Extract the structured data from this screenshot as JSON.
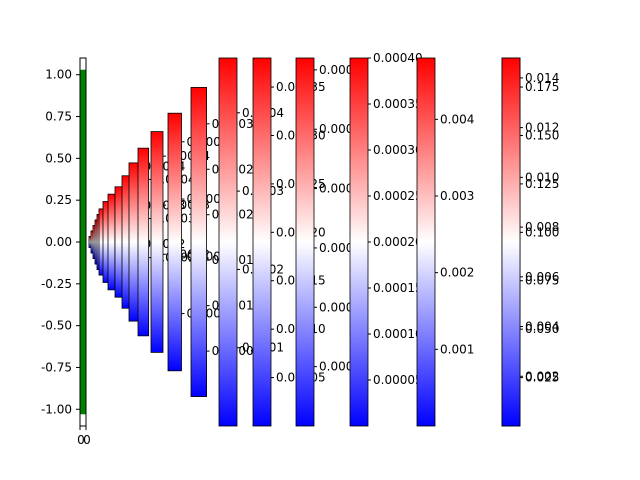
{
  "chart_data": {
    "type": "heatmap",
    "description_colormap": "bwr",
    "colors": {
      "main_bar": "#008000",
      "low": "#0000ff",
      "mid": "#ffffff",
      "high": "#ff0000"
    },
    "main_axis": {
      "ylim": [
        -1.1,
        1.1
      ],
      "yticks": [
        "1.00",
        "0.75",
        "0.50",
        "0.25",
        "0.00",
        "-0.25",
        "-0.50",
        "-0.75",
        "-1.00"
      ],
      "ytick_values": [
        1.0,
        0.75,
        0.5,
        0.25,
        0.0,
        -0.25,
        -0.5,
        -0.75,
        -1.0
      ],
      "xticks": [
        "0",
        "0"
      ],
      "bar_y_range": [
        -1.03,
        1.03
      ]
    },
    "colorbars": [
      {
        "range": [
          -0.0,
          0.00017
        ],
        "ticks": [],
        "tick_labels": [],
        "fraction": 0.03
      },
      {
        "range": [
          0.0,
          0.0003
        ],
        "ticks": [],
        "tick_labels": [],
        "fraction": 0.06
      },
      {
        "range": [
          0.0,
          0.0003
        ],
        "ticks": [],
        "tick_labels": [],
        "fraction": 0.09
      },
      {
        "range": [
          0.0,
          0.0003
        ],
        "ticks": [],
        "tick_labels": [],
        "fraction": 0.12
      },
      {
        "range": [
          0.0,
          0.0003
        ],
        "ticks": [],
        "tick_labels": [],
        "fraction": 0.15
      },
      {
        "range": [
          0.0,
          0.0003
        ],
        "ticks": [],
        "tick_labels": [],
        "fraction": 0.18
      },
      {
        "range": [
          0.0,
          0.0003
        ],
        "ticks": [],
        "tick_labels": [],
        "fraction": 0.22
      },
      {
        "range": [
          0.0,
          0.0003
        ],
        "ticks": [],
        "tick_labels": [],
        "fraction": 0.26
      },
      {
        "range": [
          0.0,
          0.0003
        ],
        "ticks": [],
        "tick_labels": [],
        "fraction": 0.3
      },
      {
        "range": [
          0.0,
          0.0003
        ],
        "ticks": [],
        "tick_labels": [],
        "fraction": 0.36
      },
      {
        "range": [
          0.0,
          0.00041
        ],
        "ticks": [
          0.0002,
          0.0003,
          0.0004
        ],
        "tick_labels": [
          "0.0002",
          "0.0003",
          "0.0004"
        ],
        "fraction": 0.43
      },
      {
        "range": [
          0.0,
          0.00048
        ],
        "ticks": [
          0.0002,
          0.0003,
          0.0004
        ],
        "tick_labels": [
          "0.0002",
          "0.0003",
          "0.0004"
        ],
        "fraction": 0.51
      },
      {
        "range": [
          0.0,
          0.00045
        ],
        "ticks": [
          0.0002,
          0.0003,
          0.0004
        ],
        "tick_labels": [
          "0.0002",
          "0.0003",
          "0.0004"
        ],
        "fraction": 0.6
      },
      {
        "range": [
          0.0,
          0.00045
        ],
        "ticks": [
          0.0001,
          0.0002,
          0.0003,
          0.0004
        ],
        "tick_labels": [
          "0.0001",
          "0.0002",
          "0.0003",
          "0.0004"
        ],
        "fraction": 0.7
      },
      {
        "range": [
          0.0,
          0.00034
        ],
        "ticks": [
          5e-05,
          0.0001,
          0.00015,
          0.0002,
          0.00025,
          0.0003
        ],
        "tick_labels": [
          "0.00005",
          "0.00010",
          "0.00015",
          "0.00020",
          "0.00025",
          "0.00030"
        ],
        "fraction": 0.84
      },
      {
        "range": [
          0.0,
          0.00047
        ],
        "ticks": [
          0.0001,
          0.0002,
          0.0003,
          0.0004
        ],
        "tick_labels": [
          "0.0001",
          "0.0002",
          "0.0003",
          "0.0004"
        ],
        "fraction": 1.0
      },
      {
        "range": [
          0.0,
          0.00038
        ],
        "ticks": [
          5e-05,
          0.0001,
          0.00015,
          0.0002,
          0.00025,
          0.0003,
          0.00035
        ],
        "tick_labels": [
          "0.00005",
          "0.00010",
          "0.00015",
          "0.00020",
          "0.00025",
          "0.00030",
          "0.00035"
        ],
        "fraction": 1.0
      },
      {
        "range": [
          0.0,
          0.00031
        ],
        "ticks": [
          5e-05,
          0.0001,
          0.00015,
          0.0002,
          0.00025,
          0.0003
        ],
        "tick_labels": [
          "0.00005",
          "0.00010",
          "0.00015",
          "0.00020",
          "0.00025",
          "0.00030"
        ],
        "fraction": 1.0
      },
      {
        "range": [
          0.0,
          0.0004
        ],
        "ticks": [
          5e-05,
          0.0001,
          0.00015,
          0.0002,
          0.00025,
          0.0003,
          0.00035,
          0.0004
        ],
        "tick_labels": [
          "0.00005",
          "0.00010",
          "0.00015",
          "0.00020",
          "0.00025",
          "0.00030",
          "0.00035",
          "0.00040"
        ],
        "fraction": 1.0
      },
      {
        "range": [
          0.0,
          0.0048
        ],
        "ticks": [
          0.001,
          0.002,
          0.003,
          0.004
        ],
        "tick_labels": [
          "0.001",
          "0.002",
          "0.003",
          "0.004"
        ],
        "fraction": 1.0
      },
      {
        "range": [
          0.0,
          0.0148
        ],
        "ticks": [
          0.002,
          0.004,
          0.006,
          0.008,
          0.01,
          0.012,
          0.014
        ],
        "tick_labels": [
          "0.002",
          "0.004",
          "0.006",
          "0.008",
          "0.010",
          "0.012",
          "0.014"
        ],
        "fraction": 1.0
      },
      {
        "range": [
          0.0,
          0.19
        ],
        "ticks": [
          0.025,
          0.05,
          0.075,
          0.1,
          0.125,
          0.15,
          0.175
        ],
        "tick_labels": [
          "0.025",
          "0.050",
          "0.075",
          "0.100",
          "0.125",
          "0.150",
          "0.175"
        ],
        "fraction": 1.0
      }
    ]
  }
}
